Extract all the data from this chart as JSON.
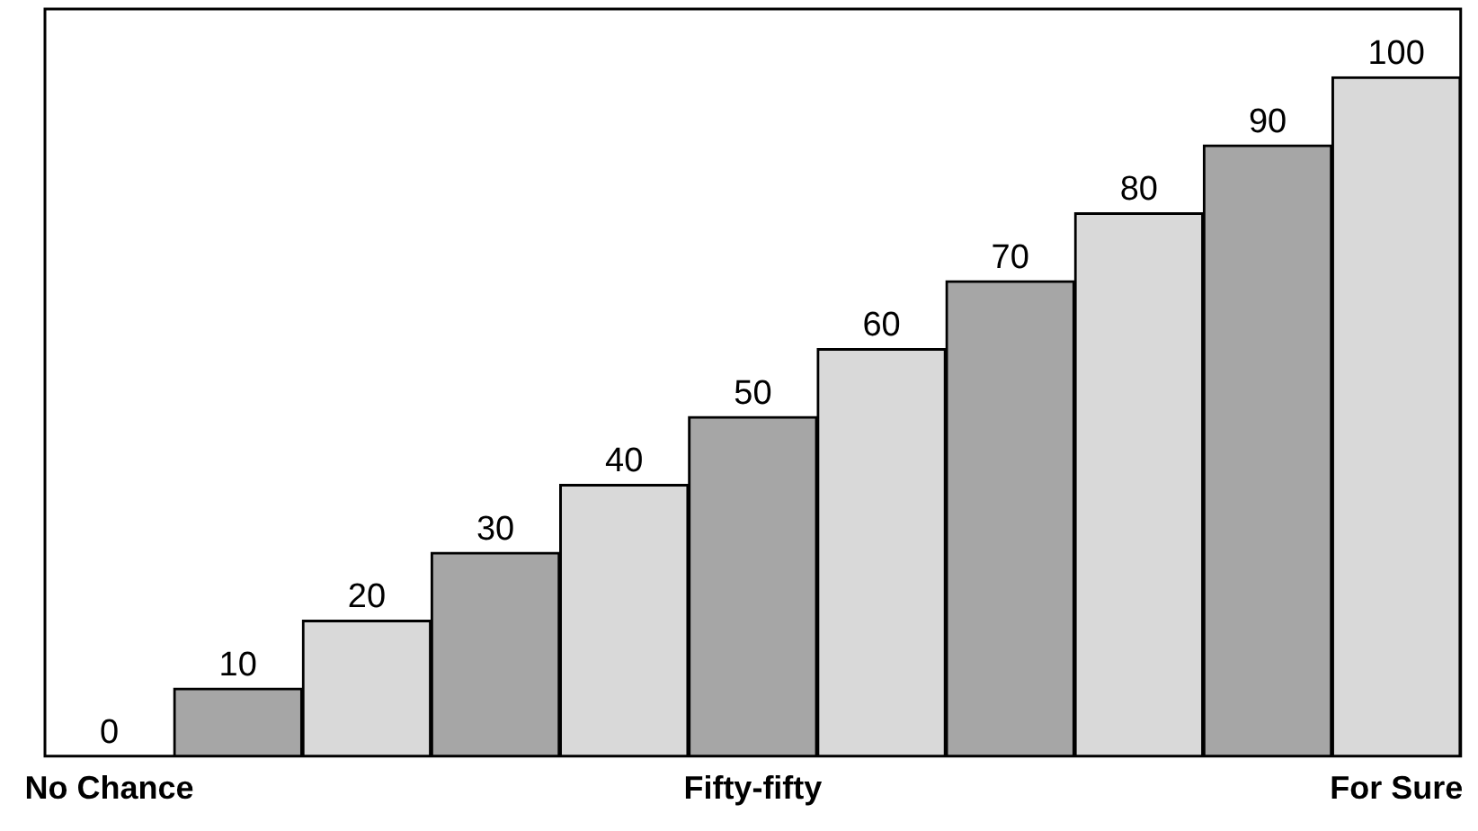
{
  "chart_data": {
    "type": "bar",
    "categories": [
      "No Chance",
      null,
      null,
      null,
      null,
      "Fifty-fifty",
      null,
      null,
      null,
      null,
      "For Sure"
    ],
    "values": [
      0,
      10,
      20,
      30,
      40,
      50,
      60,
      70,
      80,
      90,
      100
    ],
    "colors": [
      "#d9d9d9",
      "#a6a6a6",
      "#d9d9d9",
      "#a6a6a6",
      "#d9d9d9",
      "#a6a6a6",
      "#d9d9d9",
      "#a6a6a6",
      "#d9d9d9",
      "#a6a6a6",
      "#d9d9d9"
    ],
    "ylim": [
      0,
      110
    ],
    "tick_labels": "x",
    "data_labels": true,
    "grid": false,
    "legend": false
  }
}
